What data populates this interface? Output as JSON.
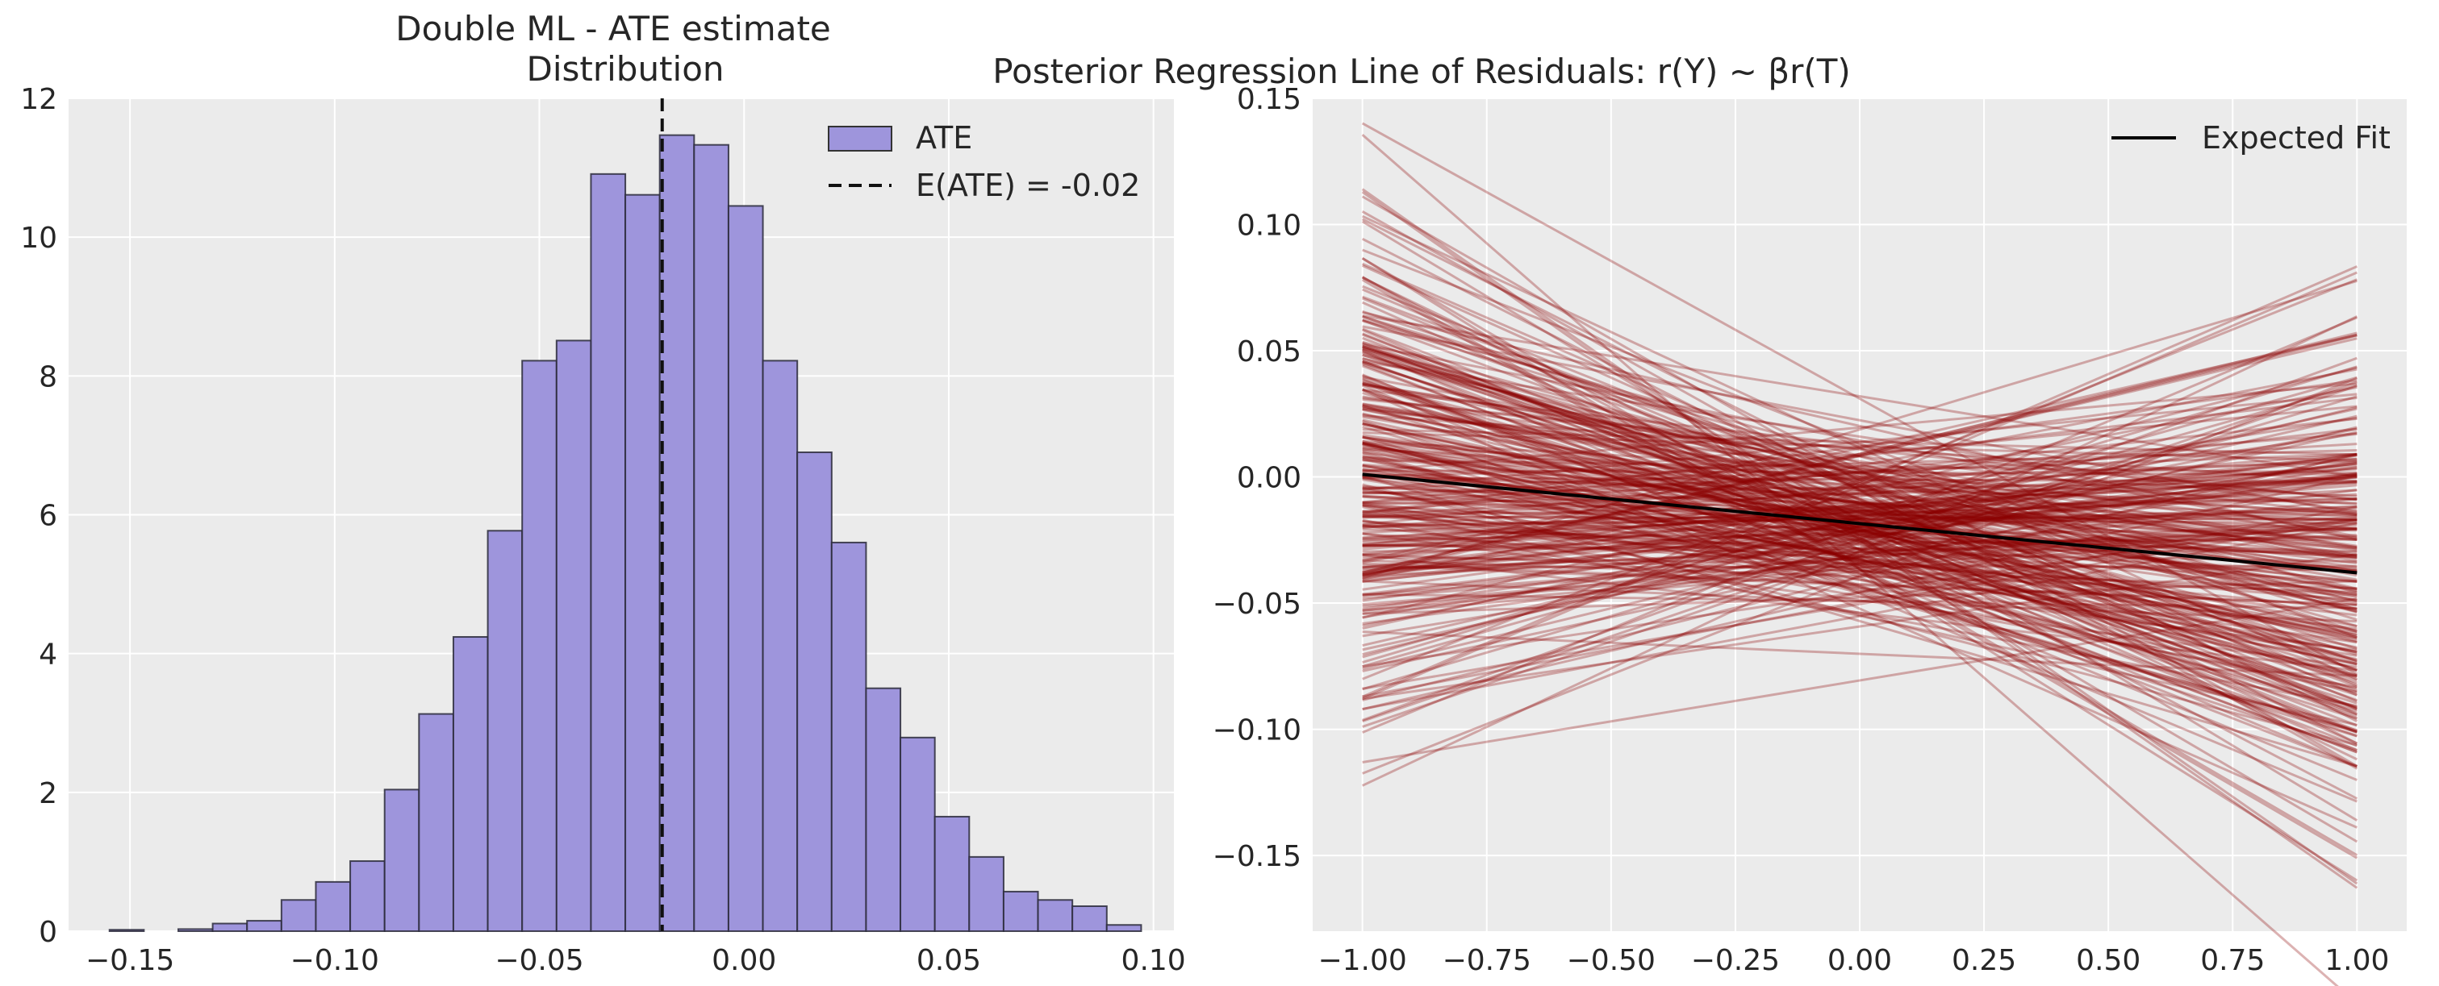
{
  "chart_data": [
    {
      "type": "bar",
      "title": "Double ML - ATE estimate",
      "subtitle": "Distribution",
      "xlabel": "",
      "ylabel": "",
      "xlim": [
        -0.165,
        0.105
      ],
      "ylim": [
        0,
        12
      ],
      "grid": true,
      "legend_position": "top-right",
      "xticks": [
        -0.15,
        -0.1,
        -0.05,
        0.0,
        0.05,
        0.1
      ],
      "xtick_labels": [
        "−0.15",
        "−0.10",
        "−0.05",
        "0.00",
        "0.05",
        "0.10"
      ],
      "yticks": [
        0,
        2,
        4,
        6,
        8,
        10,
        12
      ],
      "ytick_labels": [
        "0",
        "2",
        "4",
        "6",
        "8",
        "10",
        "12"
      ],
      "bin_start": -0.155,
      "bin_width": 0.0084,
      "values": [
        0.02,
        0.0,
        0.03,
        0.11,
        0.15,
        0.45,
        0.71,
        1.01,
        2.04,
        3.13,
        4.24,
        5.77,
        8.22,
        8.51,
        10.91,
        10.61,
        11.47,
        11.33,
        10.45,
        8.22,
        6.9,
        5.6,
        3.5,
        2.79,
        1.65,
        1.07,
        0.57,
        0.45,
        0.36,
        0.09
      ],
      "bar_color": "#9e95dc",
      "mean_value": -0.02,
      "legend": [
        "ATE",
        "E(ATE) = -0.02"
      ]
    },
    {
      "type": "line",
      "title": "Posterior Regression Line of Residuals: r(Y) ~ βr(T)",
      "xlabel": "",
      "ylabel": "",
      "xlim": [
        -1.1,
        1.1
      ],
      "ylim": [
        -0.18,
        0.15
      ],
      "grid": true,
      "legend_position": "top-right",
      "xticks": [
        -1.0,
        -0.75,
        -0.5,
        -0.25,
        0.0,
        0.25,
        0.5,
        0.75,
        1.0
      ],
      "xtick_labels": [
        "−1.00",
        "−0.75",
        "−0.50",
        "−0.25",
        "0.00",
        "0.25",
        "0.50",
        "0.75",
        "1.00"
      ],
      "yticks": [
        0.15,
        0.1,
        0.05,
        0.0,
        -0.05,
        -0.1,
        -0.15
      ],
      "ytick_labels": [
        "0.15",
        "0.10",
        "0.05",
        "0.00",
        "−0.05",
        "−0.10",
        "−0.15"
      ],
      "posterior_draws": 300,
      "posterior_color": "#8b0000",
      "posterior_intercept_mean": -0.018,
      "posterior_intercept_sd": 0.018,
      "posterior_slope_mean": -0.0195,
      "posterior_slope_sd": 0.045,
      "expected_fit": {
        "x": [
          -1.0,
          1.0
        ],
        "y": [
          0.001,
          -0.038
        ]
      },
      "legend": [
        "Expected Fit"
      ]
    }
  ]
}
